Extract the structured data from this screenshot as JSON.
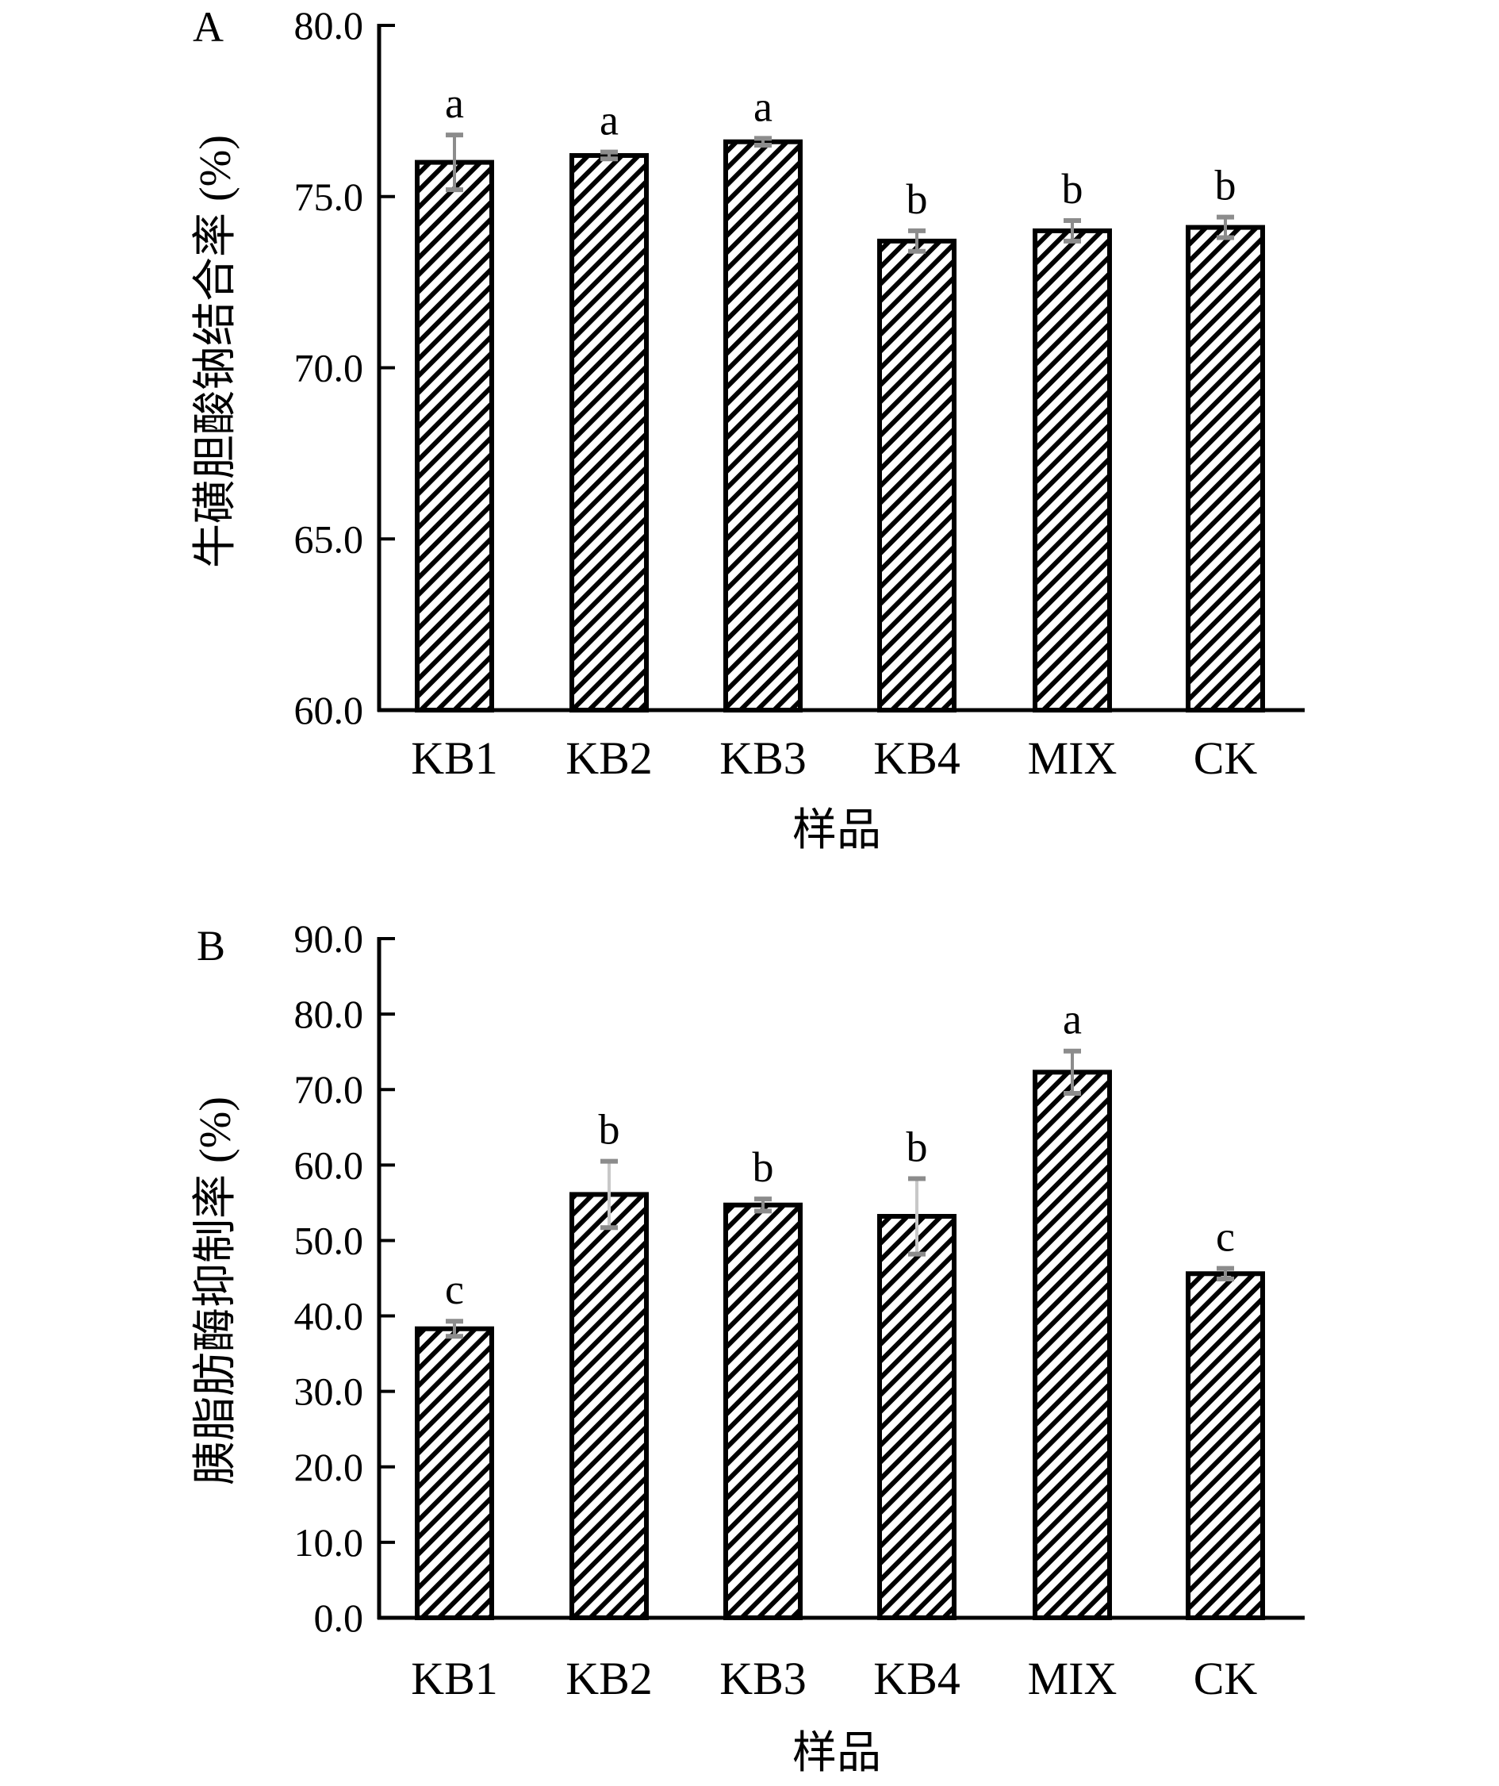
{
  "chart_data": [
    {
      "type": "bar",
      "panel_label": "A",
      "categories": [
        "KB1",
        "KB2",
        "KB3",
        "KB4",
        "MIX",
        "CK"
      ],
      "values": [
        76.0,
        76.2,
        76.6,
        73.7,
        74.0,
        74.1
      ],
      "errors": [
        0.8,
        0.1,
        0.1,
        0.3,
        0.3,
        0.3
      ],
      "significance": [
        "a",
        "a",
        "a",
        "b",
        "b",
        "b"
      ],
      "xlabel": "样品",
      "ylabel": "牛磺胆酸钠结合率 (%)",
      "ylim": [
        60.0,
        80.0
      ],
      "yticks": [
        "60.0",
        "65.0",
        "70.0",
        "75.0",
        "80.0"
      ],
      "grid": false,
      "legend": "none",
      "fill": "diagonal hatch"
    },
    {
      "type": "bar",
      "panel_label": "B",
      "categories": [
        "KB1",
        "KB2",
        "KB3",
        "KB4",
        "MIX",
        "CK"
      ],
      "values": [
        38.3,
        56.1,
        54.7,
        53.2,
        72.3,
        45.6
      ],
      "errors": [
        1.0,
        4.4,
        0.8,
        5.0,
        2.8,
        0.7
      ],
      "significance": [
        "c",
        "b",
        "b",
        "b",
        "a",
        "c"
      ],
      "xlabel": "样品",
      "ylabel": "胰脂肪酶抑制率 (%)",
      "ylim": [
        0.0,
        90.0
      ],
      "yticks": [
        "0.0",
        "10.0",
        "20.0",
        "30.0",
        "40.0",
        "50.0",
        "60.0",
        "70.0",
        "80.0",
        "90.0"
      ],
      "grid": false,
      "legend": "none",
      "fill": "diagonal hatch"
    }
  ],
  "colors": {
    "bar_stroke": "#000000",
    "hatch": "#000000",
    "error_bar": "#8c8c8c",
    "error_bar_light": "#c8c8c8"
  }
}
